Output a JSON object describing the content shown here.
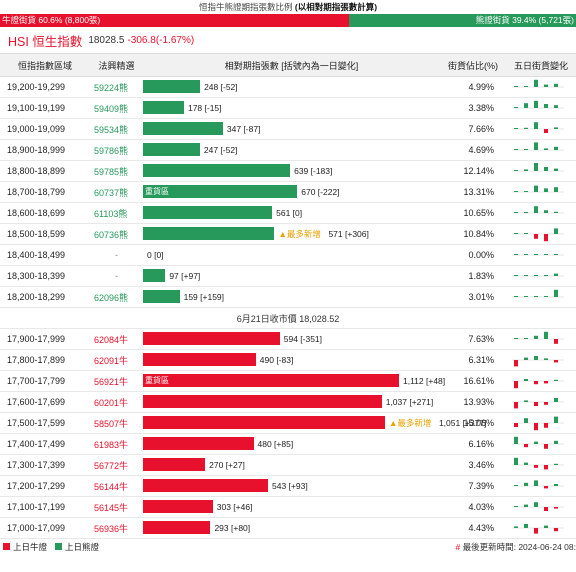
{
  "header": {
    "title_prefix": "恒指牛熊證期指張數比例",
    "title_suffix": "(以相對期指張數計算)"
  },
  "ratio": {
    "bull_label": "牛證街貨 60.6% (8,800張)",
    "bear_label": "熊證街貨 39.4% (5,721張)",
    "bull_fraction": 0.606,
    "bull_color": "#e8112d",
    "bear_color": "#27995b"
  },
  "index": {
    "name": "HSI 恒生指數",
    "value": "18028.5",
    "change": "-306.8(-1.67%)"
  },
  "columns": {
    "range": "恒指指數區域",
    "code": "法興精選",
    "contracts": "相對期指張數 [括號內為一日變化]",
    "pct": "街貨佔比(%)",
    "trend": "五日街貨變化"
  },
  "max_contracts": 1112,
  "bear_rows": [
    {
      "range": "19,200-19,299",
      "code": "59224熊",
      "value": 248,
      "change": "[-52]",
      "label": "248 [-52]",
      "pct": "4.99%",
      "heavy": false,
      "newest": false,
      "spark": [
        0.05,
        0.1,
        0.9,
        0.3,
        0.4
      ]
    },
    {
      "range": "19,100-19,199",
      "code": "59409熊",
      "value": 178,
      "change": "[-15]",
      "label": "178 [-15]",
      "pct": "3.38%",
      "heavy": false,
      "newest": false,
      "spark": [
        0.05,
        0.6,
        0.9,
        0.5,
        0.35
      ]
    },
    {
      "range": "19,000-19,099",
      "code": "59534熊",
      "value": 347,
      "change": "[-87]",
      "label": "347 [-87]",
      "pct": "7.66%",
      "heavy": false,
      "newest": false,
      "spark": [
        0.05,
        0.15,
        0.85,
        -0.5,
        0.2
      ]
    },
    {
      "range": "18,900-18,999",
      "code": "59786熊",
      "value": 247,
      "change": "[-52]",
      "label": "247 [-52]",
      "pct": "4.69%",
      "heavy": false,
      "newest": false,
      "spark": [
        0.05,
        0.1,
        0.95,
        0.2,
        0.4
      ]
    },
    {
      "range": "18,800-18,899",
      "code": "59785熊",
      "value": 639,
      "change": "[-183]",
      "label": "639 [-183]",
      "pct": "12.14%",
      "heavy": false,
      "newest": false,
      "spark": [
        0.05,
        0.2,
        1.0,
        0.5,
        0.3
      ]
    },
    {
      "range": "18,700-18,799",
      "code": "60737熊",
      "value": 670,
      "change": "[-222]",
      "label": "670 [-222]",
      "pct": "13.31%",
      "heavy": true,
      "newest": false,
      "spark": [
        0.05,
        0.1,
        0.8,
        0.45,
        0.6
      ]
    },
    {
      "range": "18,600-18,699",
      "code": "61103熊",
      "value": 561,
      "change": "[0]",
      "label": "561 [0]",
      "pct": "10.65%",
      "heavy": false,
      "newest": false,
      "spark": [
        0.05,
        0.1,
        0.85,
        0.35,
        0.15
      ]
    },
    {
      "range": "18,500-18,599",
      "code": "60736熊",
      "value": 571,
      "change": "[+306]",
      "label": "571 [+306]",
      "pct": "10.84%",
      "heavy": false,
      "newest": true,
      "spark": [
        0.05,
        0.1,
        -0.6,
        -0.9,
        0.7
      ]
    },
    {
      "range": "18,400-18,499",
      "code": "-",
      "value": 0,
      "change": "[0]",
      "label": "0 [0]",
      "pct": "0.00%",
      "heavy": false,
      "newest": false,
      "spark": [
        0.05,
        0.05,
        0.05,
        0.05,
        0.05
      ]
    },
    {
      "range": "18,300-18,399",
      "code": "-",
      "value": 97,
      "change": "[+97]",
      "label": "97 [+97]",
      "pct": "1.83%",
      "heavy": false,
      "newest": false,
      "spark": [
        0.05,
        0.05,
        0.05,
        0.05,
        0.3
      ]
    },
    {
      "range": "18,200-18,299",
      "code": "62096熊",
      "value": 159,
      "change": "[+159]",
      "label": "159 [+159]",
      "pct": "3.01%",
      "heavy": false,
      "newest": false,
      "spark": [
        0.05,
        0.05,
        0.05,
        0.05,
        0.9
      ]
    }
  ],
  "separator": "6月21日收市價 18,028.52",
  "bull_rows": [
    {
      "range": "17,900-17,999",
      "code": "62084牛",
      "value": 594,
      "change": "[-351]",
      "label": "594 [-351]",
      "pct": "7.63%",
      "heavy": false,
      "newest": false,
      "spark": [
        0.05,
        0.1,
        0.4,
        0.9,
        -0.6
      ]
    },
    {
      "range": "17,800-17,899",
      "code": "62091牛",
      "value": 490,
      "change": "[-83]",
      "label": "490 [-83]",
      "pct": "6.31%",
      "heavy": false,
      "newest": false,
      "spark": [
        -0.8,
        0.3,
        0.5,
        0.2,
        -0.3
      ]
    },
    {
      "range": "17,700-17,799",
      "code": "56921牛",
      "value": 1112,
      "change": "[+48]",
      "label": "1,112 [+48]",
      "pct": "16.61%",
      "heavy": true,
      "newest": false,
      "spark": [
        -0.9,
        0.25,
        -0.4,
        -0.3,
        0.15
      ]
    },
    {
      "range": "17,600-17,699",
      "code": "60201牛",
      "value": 1037,
      "change": "[+271]",
      "label": "1,037 [+271]",
      "pct": "13.93%",
      "heavy": false,
      "newest": false,
      "spark": [
        -0.8,
        0.2,
        -0.5,
        -0.35,
        0.5
      ]
    },
    {
      "range": "17,500-17,599",
      "code": "58507牛",
      "value": 1051,
      "change": "[+377]",
      "label": "1,051 [+377]",
      "pct": "15.06%",
      "heavy": false,
      "newest": true,
      "spark": [
        -0.5,
        0.6,
        -0.9,
        -0.6,
        0.8
      ]
    },
    {
      "range": "17,400-17,499",
      "code": "61983牛",
      "value": 480,
      "change": "[+85]",
      "label": "480 [+85]",
      "pct": "6.16%",
      "heavy": false,
      "newest": false,
      "spark": [
        0.9,
        -0.4,
        0.3,
        -0.6,
        0.4
      ]
    },
    {
      "range": "17,300-17,399",
      "code": "56772牛",
      "value": 270,
      "change": "[+27]",
      "label": "270 [+27]",
      "pct": "3.46%",
      "heavy": false,
      "newest": false,
      "spark": [
        0.9,
        0.3,
        -0.35,
        -0.55,
        0.15
      ]
    },
    {
      "range": "17,200-17,299",
      "code": "56144牛",
      "value": 543,
      "pct": "7.39%",
      "change": "[+93]",
      "label": "543 [+93]",
      "heavy": false,
      "newest": false,
      "spark": [
        0.05,
        0.4,
        0.7,
        -0.3,
        0.25
      ]
    },
    {
      "range": "17,100-17,199",
      "code": "56145牛",
      "value": 303,
      "change": "[+46]",
      "label": "303 [+46]",
      "pct": "4.03%",
      "heavy": false,
      "newest": false,
      "spark": [
        0.1,
        0.3,
        0.6,
        -0.5,
        -0.2
      ]
    },
    {
      "range": "17,000-17,099",
      "code": "56936牛",
      "value": 293,
      "change": "[+80]",
      "label": "293 [+80]",
      "pct": "4.43%",
      "heavy": false,
      "newest": false,
      "spark": [
        0.2,
        0.5,
        -0.7,
        0.3,
        -0.4
      ]
    }
  ],
  "badges": {
    "heavy": "重貨區",
    "newest": "▲最多新增"
  },
  "legend": {
    "bull": "上日牛證",
    "bear": "上日熊證"
  },
  "updated": {
    "hash": "#",
    "text": "最後更新時間: 2024-06-24 08:"
  }
}
